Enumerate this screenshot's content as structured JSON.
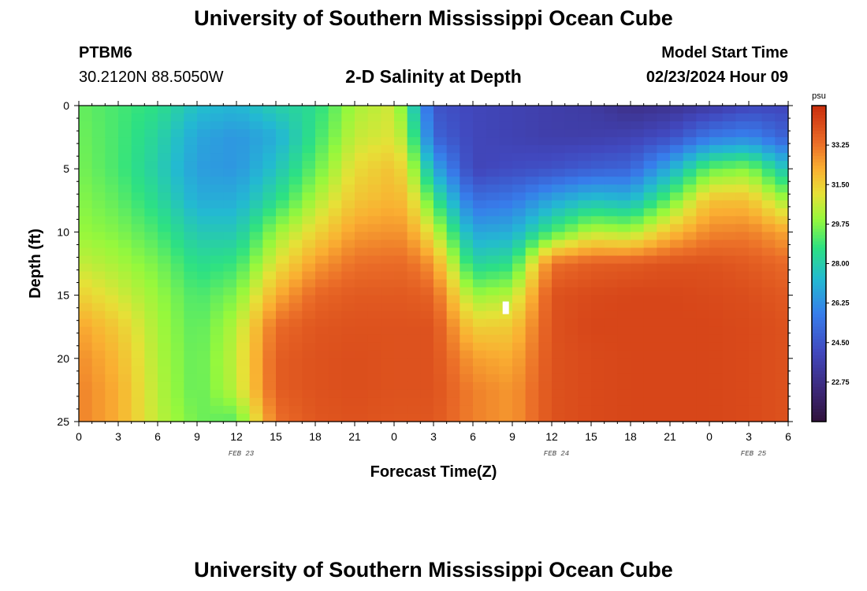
{
  "header": {
    "title": "University of Southern Mississippi Ocean Cube",
    "station_id": "PTBM6",
    "station_coords": "30.2120N  88.5050W",
    "plot_title": "2-D Salinity at Depth",
    "model_start_label": "Model Start Time",
    "model_start_value": "02/23/2024 Hour 09"
  },
  "footer": {
    "title": "University of Southern Mississippi Ocean Cube"
  },
  "chart_data": {
    "type": "heatmap",
    "title": "2-D Salinity at Depth",
    "xlabel": "Forecast Time(Z)",
    "ylabel": "Depth (ft)",
    "x_range_hours": [
      0,
      54
    ],
    "y_range_ft": [
      0,
      25
    ],
    "y_inverted": true,
    "x_tick_labels": [
      "0",
      "3",
      "6",
      "9",
      "12",
      "15",
      "18",
      "21",
      "0",
      "3",
      "6",
      "9",
      "12",
      "15",
      "18",
      "21",
      "0",
      "3",
      "6"
    ],
    "x_tick_hours": [
      0,
      3,
      6,
      9,
      12,
      15,
      18,
      21,
      24,
      27,
      30,
      33,
      36,
      39,
      42,
      45,
      48,
      51,
      54
    ],
    "date_labels": [
      {
        "text": "FEB 23",
        "hour": 12
      },
      {
        "text": "FEB 24",
        "hour": 36
      },
      {
        "text": "FEB 25",
        "hour": 51
      }
    ],
    "y_ticks": [
      0,
      5,
      10,
      15,
      20,
      25
    ],
    "y_tick_labels": [
      "0",
      "5",
      "10",
      "15",
      "20",
      "25"
    ],
    "colorbar": {
      "unit": "psu",
      "range": [
        21.0,
        35.0
      ],
      "tick_values": [
        22.75,
        24.5,
        26.25,
        28.0,
        29.75,
        31.5,
        33.25
      ],
      "tick_labels": [
        "22.75",
        "24.50",
        "26.25",
        "28.00",
        "29.75",
        "31.50",
        "33.25"
      ]
    },
    "depth_levels_ft": [
      0,
      2.5,
      5,
      7.5,
      10,
      12.5,
      15,
      17.5,
      20,
      22.5,
      25
    ],
    "series": [
      {
        "name": "hour 0",
        "hour": 0,
        "values": [
          29.4,
          29.5,
          29.6,
          29.8,
          30.0,
          30.6,
          31.5,
          32.4,
          32.8,
          33.0,
          33.0
        ]
      },
      {
        "name": "hour 3",
        "hour": 3,
        "values": [
          29.0,
          29.0,
          29.0,
          29.3,
          29.7,
          30.2,
          30.8,
          31.6,
          32.0,
          32.2,
          32.2
        ]
      },
      {
        "name": "hour 6",
        "hour": 6,
        "values": [
          28.6,
          28.2,
          28.0,
          28.4,
          29.0,
          29.6,
          30.0,
          30.2,
          30.3,
          30.4,
          30.5
        ]
      },
      {
        "name": "hour 9",
        "hour": 9,
        "values": [
          27.5,
          26.8,
          26.6,
          27.0,
          27.8,
          28.5,
          29.0,
          29.2,
          29.3,
          29.3,
          29.5
        ]
      },
      {
        "name": "hour 12",
        "hour": 12,
        "values": [
          27.2,
          26.4,
          26.4,
          27.0,
          27.8,
          28.8,
          29.7,
          30.4,
          30.6,
          30.5,
          29.2
        ]
      },
      {
        "name": "hour 15",
        "hour": 15,
        "values": [
          28.0,
          27.0,
          27.6,
          28.5,
          30.0,
          31.0,
          32.2,
          33.4,
          33.7,
          33.7,
          33.3
        ]
      },
      {
        "name": "hour 18",
        "hour": 18,
        "values": [
          28.5,
          28.8,
          29.4,
          30.3,
          31.3,
          32.5,
          33.5,
          33.9,
          34.0,
          34.0,
          33.9
        ]
      },
      {
        "name": "hour 21",
        "hour": 21,
        "values": [
          30.2,
          30.6,
          31.2,
          31.7,
          32.5,
          33.3,
          33.8,
          34.0,
          34.1,
          34.1,
          34.0
        ]
      },
      {
        "name": "hour 24",
        "hour": 24,
        "values": [
          30.8,
          31.0,
          31.8,
          32.1,
          32.7,
          33.4,
          33.8,
          34.0,
          34.0,
          34.0,
          33.9
        ]
      },
      {
        "name": "hour 25",
        "hour": 25,
        "values": [
          29.0,
          30.0,
          31.0,
          31.8,
          32.6,
          33.4,
          33.8,
          34.0,
          34.0,
          34.0,
          33.9
        ]
      },
      {
        "name": "hour 27",
        "hour": 27,
        "values": [
          24.5,
          25.0,
          27.0,
          29.0,
          30.8,
          32.6,
          33.6,
          34.0,
          34.0,
          34.0,
          33.9
        ]
      },
      {
        "name": "hour 30",
        "hour": 30,
        "values": [
          24.0,
          24.0,
          23.9,
          25.3,
          26.8,
          28.2,
          30.0,
          31.5,
          32.5,
          33.0,
          33.0
        ]
      },
      {
        "name": "hour 33",
        "hour": 33,
        "values": [
          23.8,
          23.8,
          24.2,
          25.6,
          27.0,
          28.6,
          30.4,
          31.6,
          32.2,
          32.6,
          32.6
        ]
      },
      {
        "name": "hour 36",
        "hour": 36,
        "values": [
          23.6,
          23.6,
          24.4,
          26.8,
          29.0,
          33.3,
          34.0,
          34.0,
          34.0,
          34.0,
          34.0
        ]
      },
      {
        "name": "hour 39",
        "hour": 39,
        "values": [
          23.4,
          23.6,
          24.8,
          27.6,
          30.5,
          33.7,
          34.2,
          34.3,
          34.2,
          34.2,
          34.2
        ]
      },
      {
        "name": "hour 42",
        "hour": 42,
        "values": [
          22.8,
          23.8,
          25.0,
          27.3,
          30.2,
          33.8,
          34.3,
          34.3,
          34.3,
          34.3,
          34.3
        ]
      },
      {
        "name": "hour 45",
        "hour": 45,
        "values": [
          23.0,
          24.3,
          27.0,
          29.4,
          31.8,
          34.0,
          34.3,
          34.3,
          34.3,
          34.3,
          34.3
        ]
      },
      {
        "name": "hour 48",
        "hour": 48,
        "values": [
          23.4,
          25.6,
          29.4,
          31.8,
          32.9,
          34.0,
          34.2,
          34.3,
          34.3,
          34.3,
          34.3
        ]
      },
      {
        "name": "hour 51",
        "hour": 51,
        "values": [
          24.0,
          26.0,
          29.8,
          31.8,
          33.0,
          33.8,
          34.1,
          34.2,
          34.2,
          34.2,
          34.2
        ]
      },
      {
        "name": "hour 54",
        "hour": 54,
        "values": [
          24.0,
          24.8,
          27.5,
          30.0,
          32.3,
          33.4,
          33.8,
          34.0,
          34.0,
          34.0,
          34.0
        ]
      }
    ],
    "missing_cells": [
      {
        "hour": 32.5,
        "depth_ft": 16
      }
    ]
  }
}
